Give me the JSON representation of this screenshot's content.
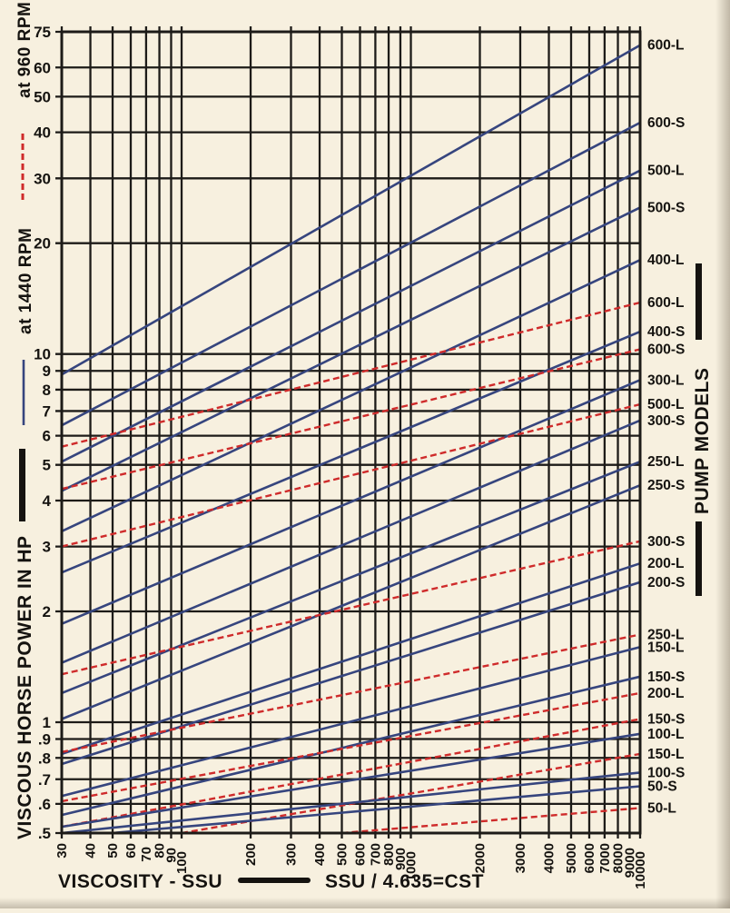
{
  "colors": {
    "background": "#f7f0df",
    "grid": "#1d1b18",
    "blue_line": "#36457e",
    "blue_label": "#303f8f",
    "red_line": "#cf2b2b",
    "red_label": "#d92f38",
    "text": "#151310"
  },
  "legend": {
    "rpm960": {
      "label": "at 960 RPM",
      "line_style": "dashed",
      "color": "#cf2b2b"
    },
    "rpm1440": {
      "label": "at 1440 RPM",
      "line_style": "solid",
      "color": "#36457e"
    }
  },
  "y_axis": {
    "title": "VISCOUS HORSE POWER IN HP",
    "scale": "log",
    "range": [
      0.5,
      75
    ],
    "ticks": [
      {
        "value": 75,
        "label": "75"
      },
      {
        "value": 60,
        "label": "60"
      },
      {
        "value": 50,
        "label": "50"
      },
      {
        "value": 40,
        "label": "40"
      },
      {
        "value": 30,
        "label": "30"
      },
      {
        "value": 20,
        "label": "20"
      },
      {
        "value": 10,
        "label": "10"
      },
      {
        "value": 9,
        "label": "9"
      },
      {
        "value": 8,
        "label": "8"
      },
      {
        "value": 7,
        "label": "7"
      },
      {
        "value": 6,
        "label": "6"
      },
      {
        "value": 5,
        "label": "5"
      },
      {
        "value": 4,
        "label": "4"
      },
      {
        "value": 3,
        "label": "3"
      },
      {
        "value": 2,
        "label": "2"
      },
      {
        "value": 1,
        "label": "1"
      },
      {
        "value": 0.9,
        "label": ".9"
      },
      {
        "value": 0.8,
        "label": ".8"
      },
      {
        "value": 0.7,
        "label": ".7"
      },
      {
        "value": 0.6,
        "label": ".6"
      },
      {
        "value": 0.5,
        "label": ".5"
      }
    ]
  },
  "x_axis": {
    "title": "VISCOSITY - SSU",
    "conversion": "SSU / 4.635=CST",
    "scale": "log",
    "range": [
      30,
      10000
    ],
    "ticks": [
      {
        "value": 30,
        "label": "30",
        "dy": 0
      },
      {
        "value": 40,
        "label": "40",
        "dy": 0
      },
      {
        "value": 50,
        "label": "50",
        "dy": 0
      },
      {
        "value": 60,
        "label": "60",
        "dy": 0
      },
      {
        "value": 70,
        "label": "70",
        "dy": 4
      },
      {
        "value": 80,
        "label": "80",
        "dy": 0
      },
      {
        "value": 90,
        "label": "90",
        "dy": 5
      },
      {
        "value": 100,
        "label": "100",
        "dy": 9
      },
      {
        "value": 200,
        "label": "200",
        "dy": 0
      },
      {
        "value": 300,
        "label": "300",
        "dy": 0
      },
      {
        "value": 400,
        "label": "400",
        "dy": 0
      },
      {
        "value": 500,
        "label": "500",
        "dy": 0
      },
      {
        "value": 600,
        "label": "600",
        "dy": 0
      },
      {
        "value": 700,
        "label": "700",
        "dy": 0
      },
      {
        "value": 800,
        "label": "800",
        "dy": 0
      },
      {
        "value": 900,
        "label": "900",
        "dy": 5
      },
      {
        "value": 1000,
        "label": "1000",
        "dy": 9
      },
      {
        "value": 2000,
        "label": "2000",
        "dy": 0
      },
      {
        "value": 3000,
        "label": "3000",
        "dy": 0
      },
      {
        "value": 4000,
        "label": "4000",
        "dy": 0
      },
      {
        "value": 5000,
        "label": "5000",
        "dy": 0
      },
      {
        "value": 6000,
        "label": "6000",
        "dy": 0
      },
      {
        "value": 7000,
        "label": "7000",
        "dy": 0
      },
      {
        "value": 8000,
        "label": "8000",
        "dy": 0
      },
      {
        "value": 9000,
        "label": "9000",
        "dy": 5
      },
      {
        "value": 10000,
        "label": "10000",
        "dy": 9
      }
    ]
  },
  "right_panel": {
    "title": "PUMP MODELS"
  },
  "chart_data": {
    "type": "line",
    "title": "",
    "xlabel": "VISCOSITY - SSU",
    "ylabel": "VISCOUS HORSE POWER IN HP",
    "x_scale": "log",
    "y_scale": "log",
    "x_range": [
      30,
      10000
    ],
    "y_range": [
      0.5,
      75
    ],
    "grid": true,
    "legend_position": "left-margin",
    "series": [
      {
        "model": "600-L",
        "rpm": 1440,
        "points": [
          [
            30,
            8.8
          ],
          [
            10000,
            69
          ]
        ]
      },
      {
        "model": "600-S",
        "rpm": 1440,
        "points": [
          [
            30,
            6.4
          ],
          [
            10000,
            42.5
          ]
        ]
      },
      {
        "model": "500-L",
        "rpm": 1440,
        "points": [
          [
            30,
            5.1
          ],
          [
            10000,
            31.5
          ]
        ]
      },
      {
        "model": "500-S",
        "rpm": 1440,
        "points": [
          [
            30,
            4.25
          ],
          [
            10000,
            25
          ]
        ]
      },
      {
        "model": "400-L",
        "rpm": 1440,
        "points": [
          [
            30,
            3.3
          ],
          [
            10000,
            18
          ]
        ]
      },
      {
        "model": "600-L",
        "rpm": 960,
        "points": [
          [
            30,
            5.6
          ],
          [
            10000,
            13.8
          ]
        ]
      },
      {
        "model": "400-S",
        "rpm": 1440,
        "points": [
          [
            30,
            2.55
          ],
          [
            10000,
            11.5
          ]
        ]
      },
      {
        "model": "600-S",
        "rpm": 960,
        "points": [
          [
            30,
            4.3
          ],
          [
            10000,
            10.3
          ]
        ]
      },
      {
        "model": "300-L",
        "rpm": 1440,
        "points": [
          [
            30,
            1.85
          ],
          [
            10000,
            8.5
          ]
        ]
      },
      {
        "model": "500-L",
        "rpm": 960,
        "points": [
          [
            30,
            3.0
          ],
          [
            10000,
            7.3
          ]
        ]
      },
      {
        "model": "300-S",
        "rpm": 1440,
        "points": [
          [
            30,
            1.45
          ],
          [
            10000,
            6.6
          ]
        ]
      },
      {
        "model": "250-L",
        "rpm": 1440,
        "points": [
          [
            30,
            1.2
          ],
          [
            10000,
            5.1
          ]
        ]
      },
      {
        "model": "250-S",
        "rpm": 1440,
        "points": [
          [
            30,
            1.02
          ],
          [
            10000,
            4.4
          ]
        ]
      },
      {
        "model": "300-S",
        "rpm": 960,
        "points": [
          [
            30,
            1.35
          ],
          [
            10000,
            3.1
          ]
        ]
      },
      {
        "model": "200-L",
        "rpm": 1440,
        "points": [
          [
            30,
            0.82
          ],
          [
            10000,
            2.7
          ]
        ]
      },
      {
        "model": "200-S",
        "rpm": 1440,
        "points": [
          [
            30,
            0.77
          ],
          [
            10000,
            2.4
          ]
        ]
      },
      {
        "model": "250-L",
        "rpm": 960,
        "points": [
          [
            30,
            0.83
          ],
          [
            10000,
            1.73
          ]
        ]
      },
      {
        "model": "150-L",
        "rpm": 1440,
        "points": [
          [
            30,
            0.63
          ],
          [
            10000,
            1.6
          ]
        ]
      },
      {
        "model": "150-S",
        "rpm": 1440,
        "points": [
          [
            30,
            0.56
          ],
          [
            10000,
            1.33
          ]
        ]
      },
      {
        "model": "200-L",
        "rpm": 960,
        "points": [
          [
            30,
            0.61
          ],
          [
            10000,
            1.2
          ]
        ]
      },
      {
        "model": "150-S",
        "rpm": 960,
        "points": [
          [
            30,
            0.52
          ],
          [
            10000,
            1.02
          ]
        ]
      },
      {
        "model": "100-L",
        "rpm": 1440,
        "points": [
          [
            30,
            0.52
          ],
          [
            10000,
            0.93
          ]
        ]
      },
      {
        "model": "150-L",
        "rpm": 960,
        "points": [
          [
            100,
            0.5
          ],
          [
            10000,
            0.82
          ]
        ]
      },
      {
        "model": "100-S",
        "rpm": 1440,
        "points": [
          [
            30,
            0.5
          ],
          [
            10000,
            0.73
          ]
        ]
      },
      {
        "model": "50-S",
        "rpm": 1440,
        "points": [
          [
            50,
            0.5
          ],
          [
            10000,
            0.67
          ]
        ]
      },
      {
        "model": "50-L",
        "rpm": 960,
        "points": [
          [
            500,
            0.5
          ],
          [
            10000,
            0.585
          ]
        ]
      }
    ]
  }
}
